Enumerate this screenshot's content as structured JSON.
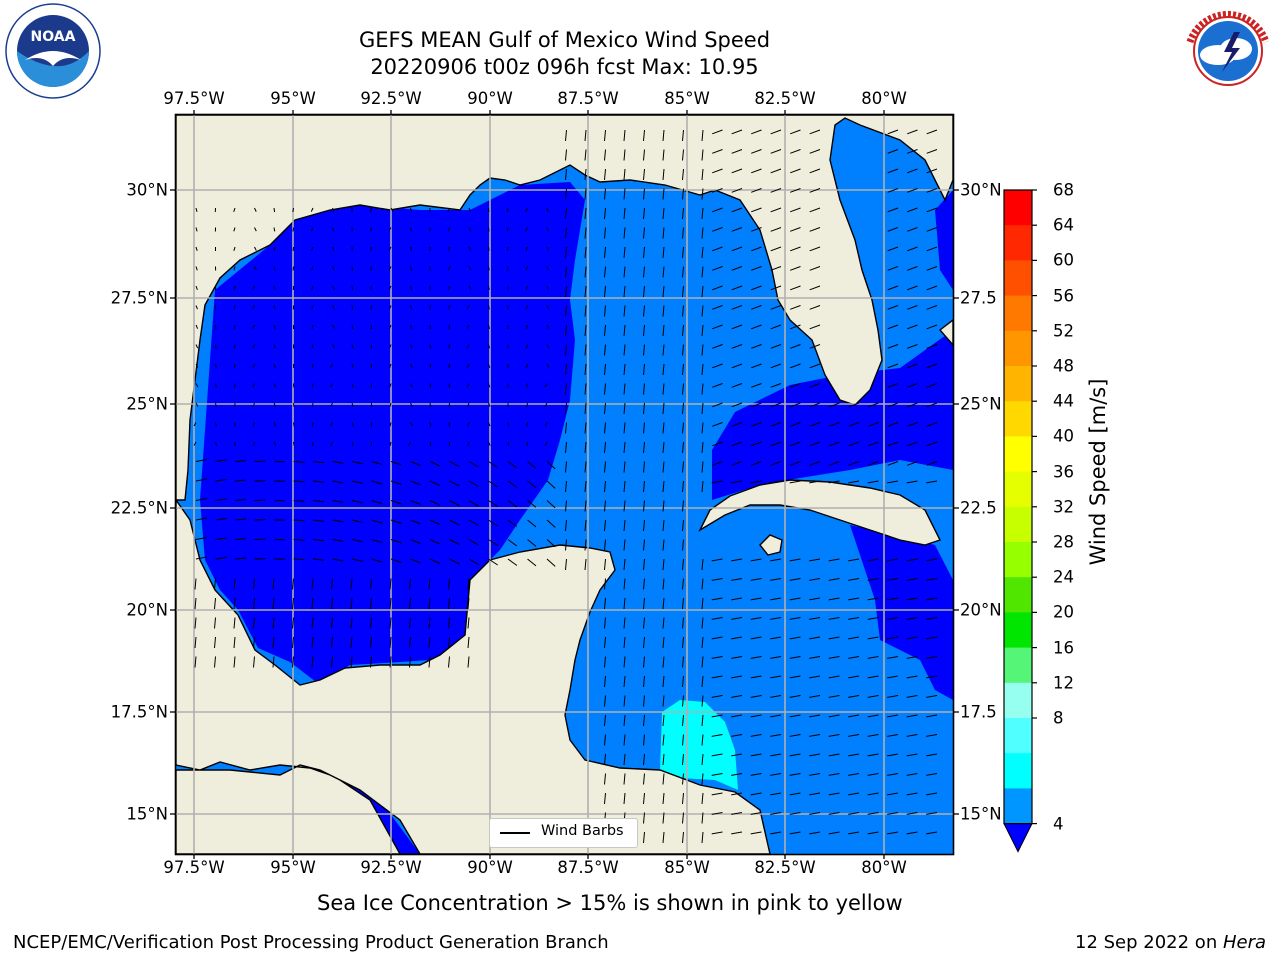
{
  "title": {
    "line1": "GEFS MEAN Gulf of Mexico Wind Speed",
    "line2": "20220906 t00z 096h fcst   Max: 10.95"
  },
  "logos": {
    "left": {
      "name": "noaa-logo",
      "text": "NOAA",
      "ring_text": "NATIONAL OCEANIC AND ATMOSPHERIC ADMINISTRATION · U.S. DEPARTMENT OF COMMERCE"
    },
    "right": {
      "name": "nws-logo",
      "ring_text": "NATIONAL WEATHER SERVICE"
    }
  },
  "map": {
    "lon_labels": [
      "97.5°W",
      "95°W",
      "92.5°W",
      "90°W",
      "87.5°W",
      "85°W",
      "82.5°W",
      "80°W"
    ],
    "lat_labels_left": [
      "30°N",
      "27.5°N",
      "25°N",
      "22.5°N",
      "20°N",
      "17.5°N",
      "15°N"
    ],
    "lat_labels_right": [
      "30°N",
      "27.5",
      "25°N",
      "22.5",
      "20°N",
      "17.5",
      "15°N"
    ],
    "land_color": "#efeddc",
    "gridline_color": "#b0b0b0"
  },
  "legend": {
    "label": "Wind Barbs"
  },
  "colorbar": {
    "label": "Wind Speed [m/s]",
    "ticks": [
      "68",
      "64",
      "60",
      "56",
      "52",
      "48",
      "44",
      "40",
      "36",
      "32",
      "28",
      "24",
      "20",
      "16",
      "12",
      "8",
      "4"
    ],
    "colors": [
      "#ff0000",
      "#ff2800",
      "#ff5000",
      "#ff7800",
      "#ff9600",
      "#ffb400",
      "#ffd800",
      "#ffff00",
      "#e6ff00",
      "#c8ff00",
      "#96ff00",
      "#50e600",
      "#00e600",
      "#55f578",
      "#96fff0",
      "#50ffff",
      "#00ffff",
      "#0096ff"
    ],
    "extend_color": "#0000ff"
  },
  "wind_fill_colors": {
    "c1": "#0000ff",
    "c2": "#0080ff",
    "c3": "#00ffff"
  },
  "note": "Sea Ice Concentration > 15% is shown in pink to yellow",
  "footer": {
    "left": "NCEP/EMC/Verification Post Processing Product Generation Branch",
    "right_date": "12 Sep 2022 on ",
    "right_host": "Hera"
  }
}
